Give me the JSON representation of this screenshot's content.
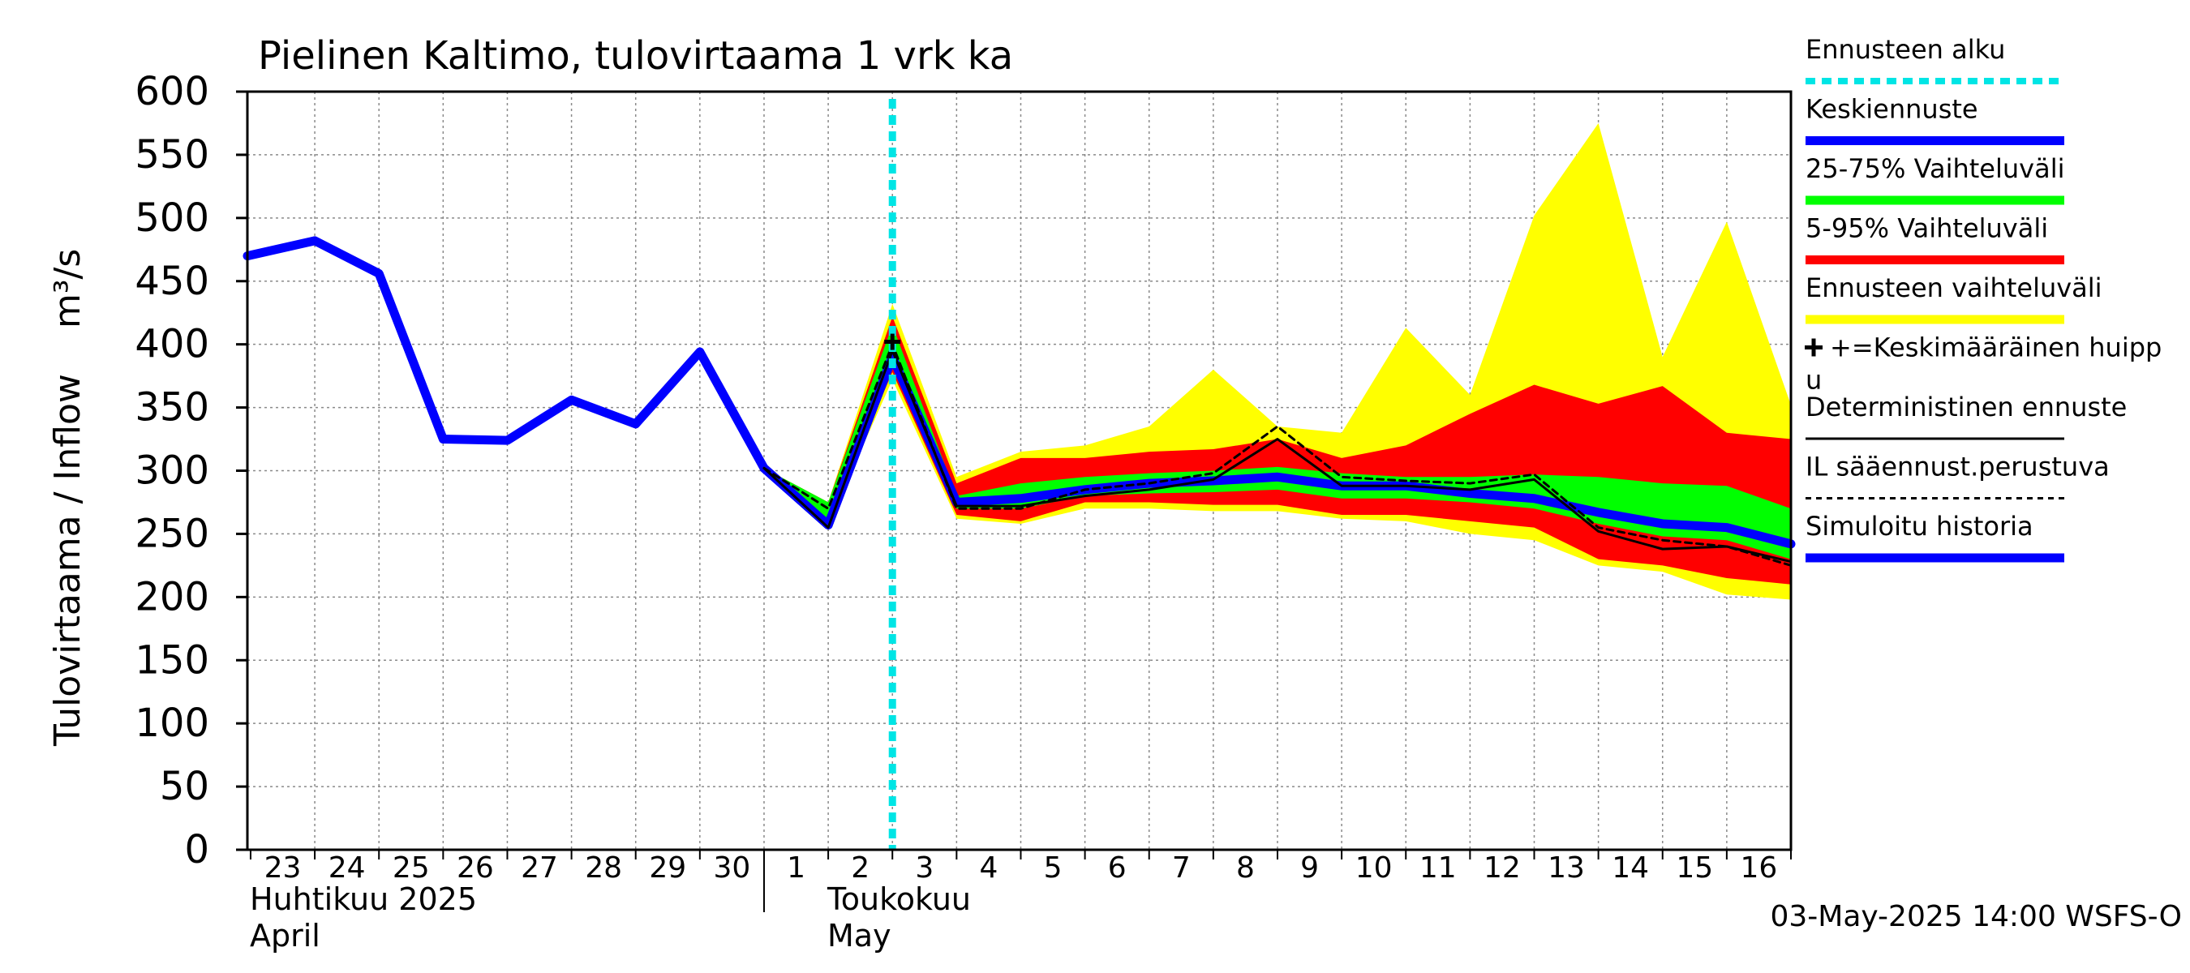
{
  "chart_data": {
    "type": "area",
    "title": "Pielinen Kaltimo, tulovirtaama 1 vrk ka",
    "ylabel": "Tulovirtaama / Inflow",
    "yunit": "m³/s",
    "ylim": [
      0,
      600
    ],
    "yticks": [
      0,
      50,
      100,
      150,
      200,
      250,
      300,
      350,
      400,
      450,
      500,
      550,
      600
    ],
    "xlim": [
      -0.05,
      24
    ],
    "grid": true,
    "x_day_labels": [
      "23",
      "24",
      "25",
      "26",
      "27",
      "28",
      "29",
      "30",
      "1",
      "2",
      "3",
      "4",
      "5",
      "6",
      "7",
      "8",
      "9",
      "10",
      "11",
      "12",
      "13",
      "14",
      "15",
      "16"
    ],
    "month_labels": [
      {
        "fi": "Huhtikuu  2025",
        "en": "April",
        "at": 0
      },
      {
        "fi": "Toukokuu",
        "en": "May",
        "at": 9
      }
    ],
    "month_separator_at": 8,
    "forecast_start": 10,
    "footer": "03-May-2025 14:00 WSFS-O",
    "legend": [
      {
        "label": "Ennusteen alku",
        "color": "#00e5e5",
        "style": "dotted"
      },
      {
        "label": "Keskiennuste",
        "color": "#0000ff",
        "style": "thick"
      },
      {
        "label": "25-75% Vaihteluväli",
        "color": "#00ff00",
        "style": "thick"
      },
      {
        "label": "5-95% Vaihteluväli",
        "color": "#ff0000",
        "style": "thick"
      },
      {
        "label": "Ennusteen vaihteluväli",
        "color": "#ffff00",
        "style": "thick"
      },
      {
        "label": "+=Keskimääräinen huippu",
        "color": "#000000",
        "style": "none"
      },
      {
        "label": "Deterministinen ennuste",
        "color": "#000000",
        "style": "thin"
      },
      {
        "label": "IL sääennust.perustuva",
        "color": "#000000",
        "style": "dashed"
      },
      {
        "label": "Simuloitu historia",
        "color": "#0000ff",
        "style": "thick"
      }
    ],
    "series": [
      {
        "name": "Simuloitu historia",
        "x": [
          -0.05,
          1,
          2,
          3,
          4,
          5,
          6,
          7,
          8,
          9,
          10
        ],
        "values": [
          470,
          482,
          456,
          325,
          324,
          356,
          337,
          394,
          302,
          257,
          390
        ]
      },
      {
        "name": "Ennusteen vaihteluväli",
        "x": [
          8,
          9,
          10,
          11,
          12,
          13,
          14,
          15,
          16,
          17,
          18,
          19,
          20,
          21,
          22,
          23,
          24
        ],
        "lower": [
          302,
          258,
          372,
          262,
          258,
          270,
          270,
          268,
          268,
          262,
          260,
          250,
          245,
          225,
          220,
          202,
          198
        ],
        "upper": [
          302,
          275,
          432,
          295,
          315,
          320,
          335,
          380,
          335,
          330,
          413,
          360,
          502,
          575,
          390,
          497,
          352
        ]
      },
      {
        "name": "5-95% Vaihteluväli",
        "x": [
          8,
          9,
          10,
          11,
          12,
          13,
          14,
          15,
          16,
          17,
          18,
          19,
          20,
          21,
          22,
          23,
          24
        ],
        "lower": [
          302,
          260,
          378,
          265,
          260,
          275,
          275,
          273,
          273,
          265,
          265,
          260,
          255,
          230,
          225,
          215,
          210
        ],
        "upper": [
          302,
          275,
          422,
          290,
          310,
          310,
          315,
          317,
          325,
          310,
          320,
          345,
          368,
          353,
          367,
          330,
          325
        ]
      },
      {
        "name": "25-75% Vaihteluväli",
        "x": [
          8,
          9,
          10,
          11,
          12,
          13,
          14,
          15,
          16,
          17,
          18,
          19,
          20,
          21,
          22,
          23,
          24
        ],
        "lower": [
          302,
          262,
          385,
          270,
          270,
          280,
          282,
          283,
          285,
          278,
          278,
          275,
          270,
          258,
          248,
          245,
          230
        ],
        "upper": [
          302,
          275,
          415,
          280,
          290,
          295,
          298,
          300,
          303,
          298,
          295,
          295,
          297,
          295,
          290,
          288,
          270
        ]
      },
      {
        "name": "Keskiennuste",
        "x": [
          8,
          9,
          10,
          11,
          12,
          13,
          14,
          15,
          16,
          17,
          18,
          19,
          20,
          21,
          22,
          23,
          24
        ],
        "values": [
          302,
          257,
          390,
          275,
          278,
          285,
          290,
          292,
          295,
          288,
          288,
          282,
          278,
          267,
          258,
          255,
          242
        ]
      },
      {
        "name": "Deterministinen ennuste",
        "x": [
          8,
          9,
          10,
          11,
          12,
          13,
          14,
          15,
          16,
          17,
          18,
          19,
          20,
          21,
          22,
          23,
          24
        ],
        "values": [
          302,
          255,
          395,
          272,
          272,
          280,
          285,
          293,
          325,
          288,
          288,
          285,
          293,
          252,
          238,
          240,
          228
        ]
      },
      {
        "name": "IL sääennust.perustuva",
        "x": [
          8,
          9,
          10,
          11,
          12,
          13,
          14,
          15,
          16,
          17,
          18,
          19,
          20,
          21,
          22,
          23,
          24
        ],
        "values": [
          302,
          270,
          400,
          270,
          270,
          285,
          290,
          298,
          335,
          295,
          292,
          290,
          297,
          255,
          245,
          240,
          225
        ]
      }
    ],
    "peak_marker": {
      "x": 10,
      "y": 402,
      "symbol": "+"
    }
  }
}
